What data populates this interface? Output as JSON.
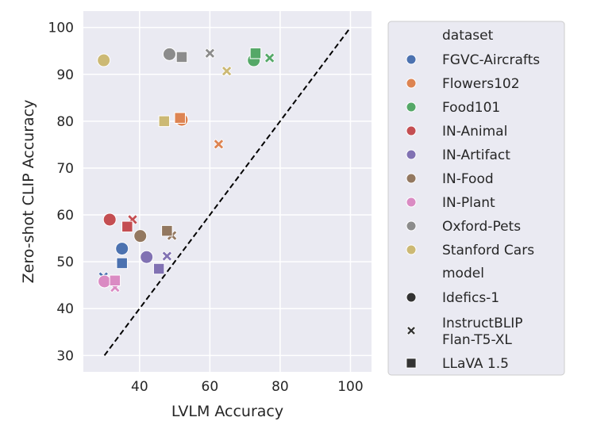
{
  "chart_data": {
    "type": "scatter",
    "title": "",
    "xlabel": "LVLM Accuracy",
    "ylabel": "Zero-shot CLIP Accuracy",
    "xlim": [
      24,
      106
    ],
    "ylim": [
      26.5,
      103.5
    ],
    "xticks": [
      40,
      60,
      80,
      100
    ],
    "yticks": [
      30,
      40,
      50,
      60,
      70,
      80,
      90,
      100
    ],
    "grid": true,
    "reference_line": {
      "x": [
        30,
        100
      ],
      "y": [
        30,
        100
      ],
      "style": "dashed"
    },
    "legend": {
      "position": "outside-right",
      "hue_title": "dataset",
      "style_title": "model",
      "datasets": [
        {
          "name": "FGVC-Aircrafts",
          "color": "#4c72b0"
        },
        {
          "name": "Flowers102",
          "color": "#dd8452"
        },
        {
          "name": "Food101",
          "color": "#55a868"
        },
        {
          "name": "IN-Animal",
          "color": "#c44e52"
        },
        {
          "name": "IN-Artifact",
          "color": "#8172b3"
        },
        {
          "name": "IN-Food",
          "color": "#937860"
        },
        {
          "name": "IN-Plant",
          "color": "#da8bc3"
        },
        {
          "name": "Oxford-Pets",
          "color": "#8c8c8c"
        },
        {
          "name": "Stanford Cars",
          "color": "#ccb974"
        }
      ],
      "models": [
        {
          "name": "Idefics-1",
          "marker": "circle",
          "lines": [
            "Idefics-1"
          ]
        },
        {
          "name": "InstructBLIP Flan-T5-XL",
          "marker": "x",
          "lines": [
            "InstructBLIP",
            "Flan-T5-XL"
          ]
        },
        {
          "name": "LLaVA 1.5",
          "marker": "square",
          "lines": [
            "LLaVA 1.5"
          ]
        }
      ]
    },
    "points": [
      {
        "dataset": "FGVC-Aircrafts",
        "model": "Idefics-1",
        "x": 35,
        "y": 52.8
      },
      {
        "dataset": "FGVC-Aircrafts",
        "model": "InstructBLIP Flan-T5-XL",
        "x": 29.7,
        "y": 46.8
      },
      {
        "dataset": "FGVC-Aircrafts",
        "model": "LLaVA 1.5",
        "x": 35,
        "y": 49.7
      },
      {
        "dataset": "Flowers102",
        "model": "Idefics-1",
        "x": 52,
        "y": 80.3
      },
      {
        "dataset": "Flowers102",
        "model": "InstructBLIP Flan-T5-XL",
        "x": 62.5,
        "y": 75.1
      },
      {
        "dataset": "Flowers102",
        "model": "LLaVA 1.5",
        "x": 51.5,
        "y": 80.7
      },
      {
        "dataset": "Food101",
        "model": "Idefics-1",
        "x": 72.5,
        "y": 93
      },
      {
        "dataset": "Food101",
        "model": "InstructBLIP Flan-T5-XL",
        "x": 77,
        "y": 93.5
      },
      {
        "dataset": "Food101",
        "model": "LLaVA 1.5",
        "x": 73,
        "y": 94.5
      },
      {
        "dataset": "IN-Animal",
        "model": "Idefics-1",
        "x": 31.5,
        "y": 59
      },
      {
        "dataset": "IN-Animal",
        "model": "InstructBLIP Flan-T5-XL",
        "x": 38,
        "y": 59
      },
      {
        "dataset": "IN-Animal",
        "model": "LLaVA 1.5",
        "x": 36.5,
        "y": 57.5
      },
      {
        "dataset": "IN-Artifact",
        "model": "Idefics-1",
        "x": 42,
        "y": 51
      },
      {
        "dataset": "IN-Artifact",
        "model": "InstructBLIP Flan-T5-XL",
        "x": 47.8,
        "y": 51.2
      },
      {
        "dataset": "IN-Artifact",
        "model": "LLaVA 1.5",
        "x": 45.5,
        "y": 48.5
      },
      {
        "dataset": "IN-Food",
        "model": "Idefics-1",
        "x": 40.2,
        "y": 55.5
      },
      {
        "dataset": "IN-Food",
        "model": "InstructBLIP Flan-T5-XL",
        "x": 49.2,
        "y": 55.6
      },
      {
        "dataset": "IN-Food",
        "model": "LLaVA 1.5",
        "x": 47.8,
        "y": 56.6
      },
      {
        "dataset": "IN-Plant",
        "model": "Idefics-1",
        "x": 30,
        "y": 45.8
      },
      {
        "dataset": "IN-Plant",
        "model": "InstructBLIP Flan-T5-XL",
        "x": 33,
        "y": 44.5
      },
      {
        "dataset": "IN-Plant",
        "model": "LLaVA 1.5",
        "x": 33,
        "y": 46
      },
      {
        "dataset": "Oxford-Pets",
        "model": "Idefics-1",
        "x": 48.5,
        "y": 94.3
      },
      {
        "dataset": "Oxford-Pets",
        "model": "InstructBLIP Flan-T5-XL",
        "x": 60,
        "y": 94.5
      },
      {
        "dataset": "Oxford-Pets",
        "model": "LLaVA 1.5",
        "x": 52,
        "y": 93.7
      },
      {
        "dataset": "Stanford Cars",
        "model": "Idefics-1",
        "x": 29.8,
        "y": 93
      },
      {
        "dataset": "Stanford Cars",
        "model": "InstructBLIP Flan-T5-XL",
        "x": 64.8,
        "y": 90.7
      },
      {
        "dataset": "Stanford Cars",
        "model": "LLaVA 1.5",
        "x": 47,
        "y": 80
      }
    ]
  }
}
